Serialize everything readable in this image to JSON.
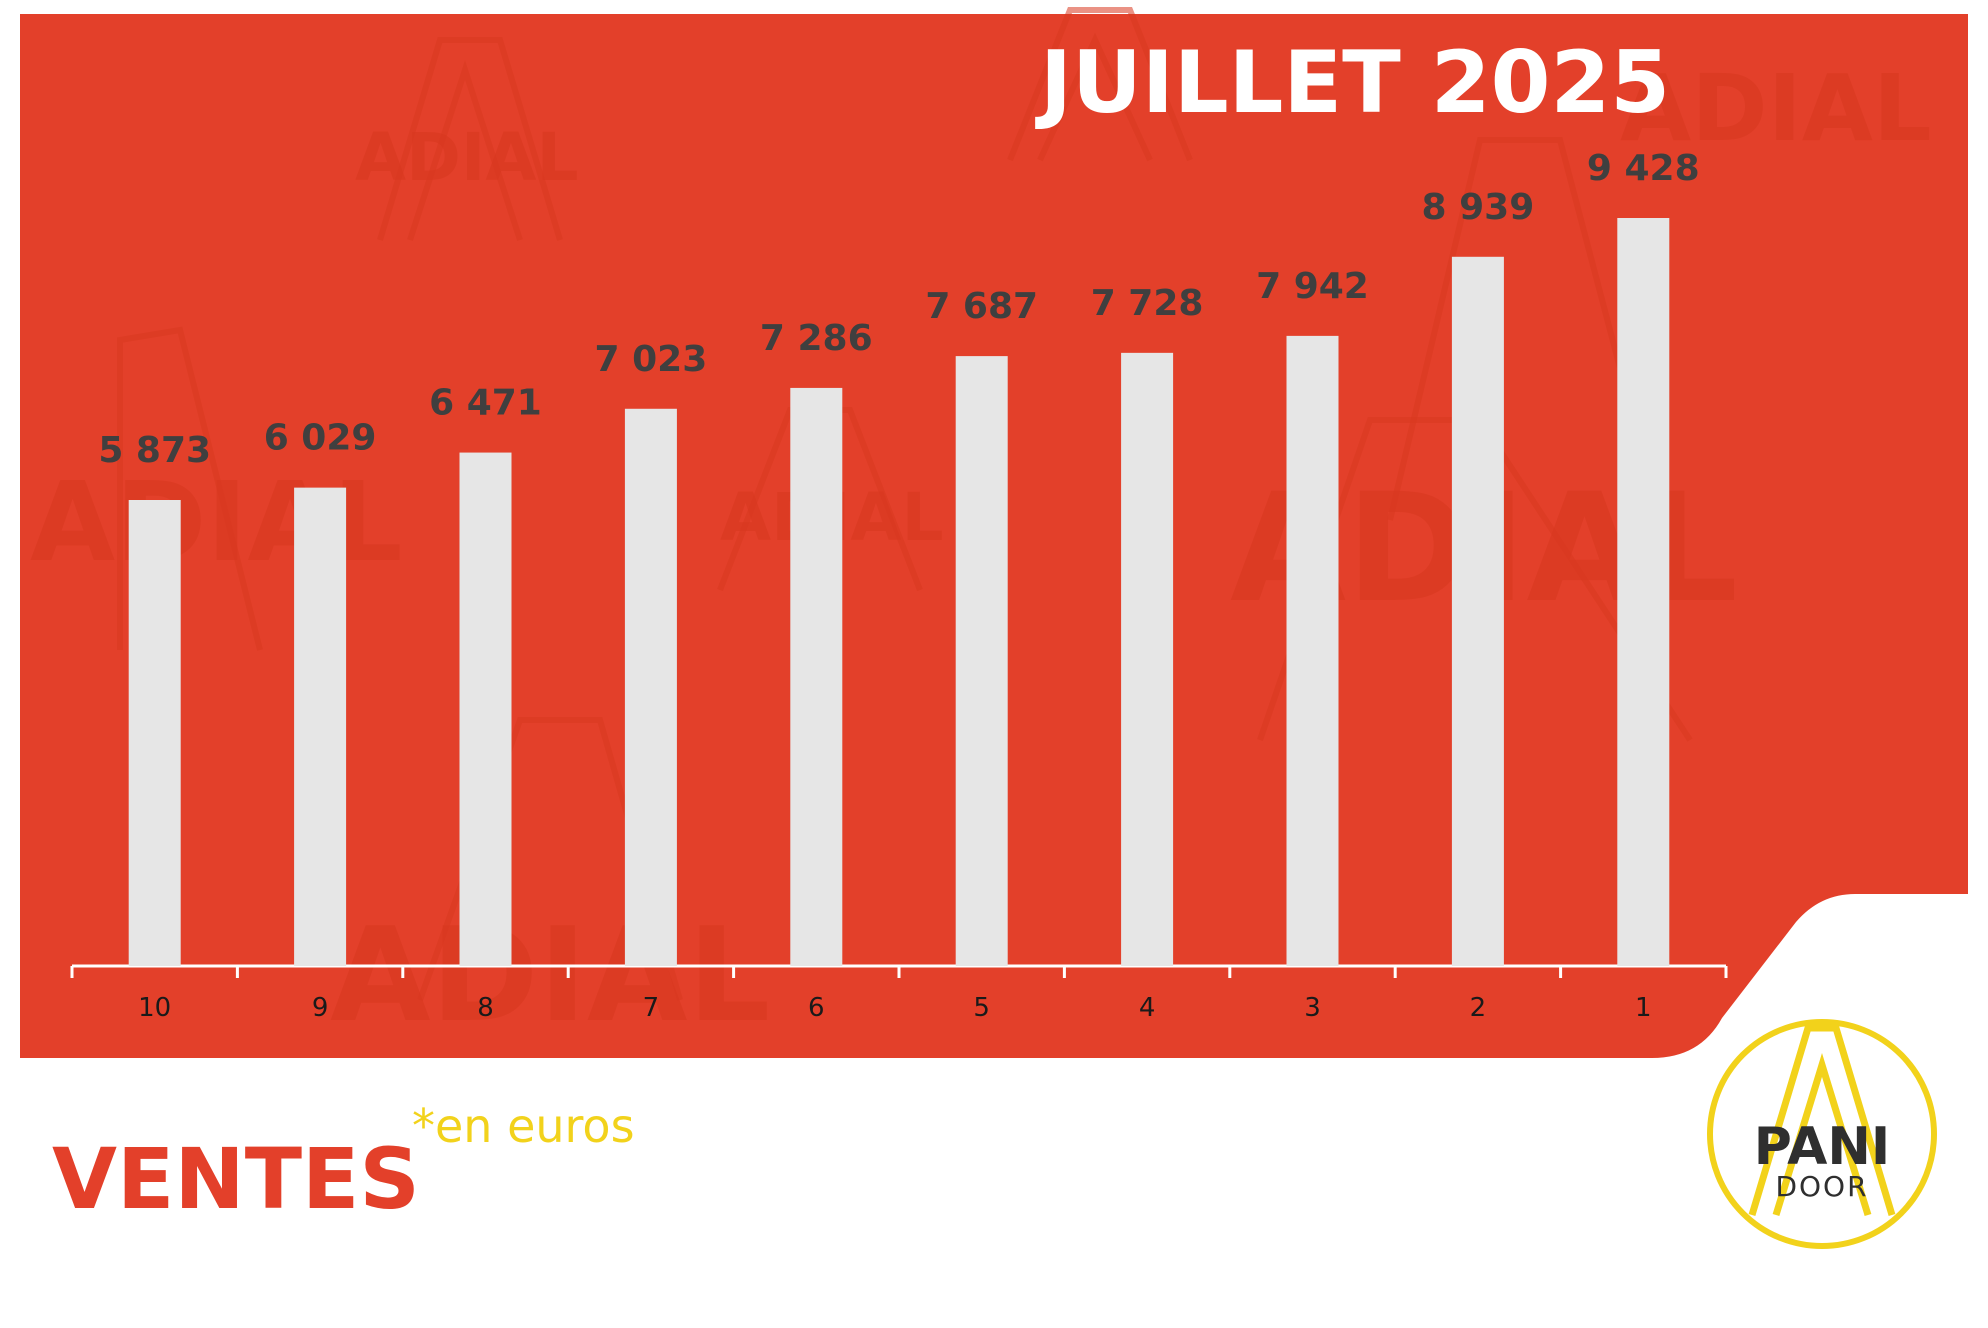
{
  "title": "JUILLET 2025",
  "footer": {
    "heading": "VENTES",
    "unit_note": "*en euros"
  },
  "logo": {
    "main": "PANI",
    "sub": "DOOR"
  },
  "watermark": {
    "text": "ADIAL"
  },
  "colors": {
    "panel": "#E3402A",
    "bars": "#E6E6E6",
    "title": "#ffffff",
    "heading": "#E3402A",
    "unit_note": "#F2D21B",
    "logo_ring": "#F2D21B"
  },
  "chart_data": {
    "type": "bar",
    "categories": [
      "10",
      "9",
      "8",
      "7",
      "6",
      "5",
      "4",
      "3",
      "2",
      "1"
    ],
    "values": [
      5873,
      6029,
      6471,
      7023,
      7286,
      7687,
      7728,
      7942,
      8939,
      9428
    ],
    "data_labels": [
      "5 873",
      "6 029",
      "6 471",
      "7 023",
      "7 286",
      "7 687",
      "7 728",
      "7 942",
      "8 939",
      "9 428"
    ],
    "title": "JUILLET 2025",
    "xlabel": "",
    "ylabel": "",
    "ylim": [
      0,
      10000
    ],
    "grid": false,
    "legend": "none"
  }
}
